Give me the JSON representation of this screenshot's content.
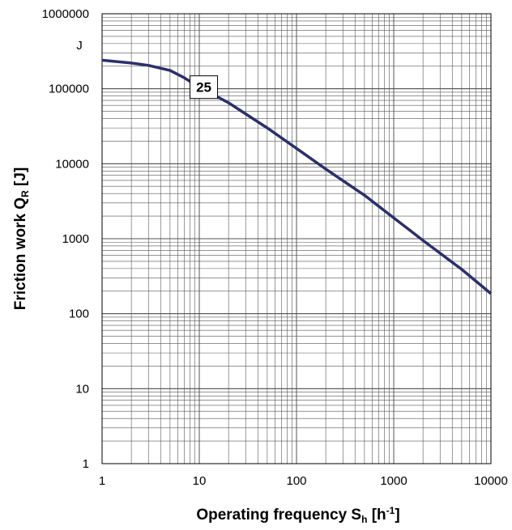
{
  "chart_data": {
    "type": "line",
    "x_scale": "log",
    "y_scale": "log",
    "xlim": [
      1,
      10000
    ],
    "ylim": [
      1,
      1000000
    ],
    "grid": true,
    "x_ticks": [
      "1",
      "10",
      "100",
      "1000",
      "10000"
    ],
    "y_ticks": [
      "1000000",
      "100000",
      "10000",
      "1000",
      "100",
      "10",
      "1"
    ],
    "y_unit": "J",
    "xlabel": {
      "main": "Operating frequency S",
      "sub": "h",
      "bracket": " [h",
      "sup": "-1",
      "close": "]"
    },
    "ylabel": {
      "main": "Friction work  Q",
      "sub": "R",
      "rest": " [J]"
    },
    "series": [
      {
        "name": "25",
        "color": "#2b2f6b",
        "x": [
          1,
          2,
          3,
          5,
          7,
          10,
          20,
          50,
          100,
          200,
          500,
          1000,
          2000,
          5000,
          10000
        ],
        "y": [
          240000,
          220000,
          205000,
          175000,
          140000,
          105000,
          65000,
          30000,
          16000,
          8500,
          3800,
          1900,
          950,
          390,
          185
        ]
      }
    ]
  }
}
